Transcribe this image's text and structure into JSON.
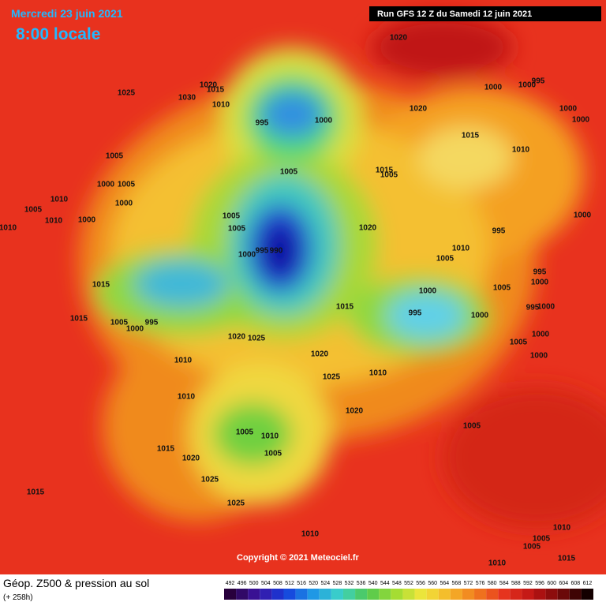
{
  "header": {
    "date": "Mercredi 23 juin 2021",
    "time": "8:00 locale",
    "run": "Run GFS 12 Z du Samedi 12 juin 2021"
  },
  "map": {
    "pressure_labels": [
      1020,
      1025,
      1030,
      1020,
      1015,
      1010,
      995,
      1000,
      1020,
      1000,
      1000,
      995,
      1000,
      1000,
      1015,
      1010,
      1005,
      1000,
      1005,
      1005,
      1005,
      1015,
      1005,
      1010,
      1010,
      1000,
      1000,
      1005,
      1005,
      1020,
      995,
      1000,
      1000,
      995,
      990,
      1005,
      1010,
      1015,
      995,
      1000,
      1005,
      1000,
      1015,
      995,
      1000,
      995,
      1000,
      1015,
      1005,
      1000,
      995,
      1020,
      1025,
      1020,
      1005,
      1000,
      1000,
      1010,
      1010,
      1025,
      1010,
      1020,
      1005,
      1005,
      1010,
      1005,
      1015,
      1020,
      1025,
      1015,
      1025,
      1010,
      1010,
      1005,
      1005,
      1015,
      1010,
      1010
    ]
  },
  "copyright": "Copyright © 2021 Meteociel.fr",
  "footer": {
    "title": "Géop. Z500 & pression au sol",
    "subtitle": "(+ 258h)",
    "scale_ticks": [
      492,
      496,
      500,
      504,
      508,
      512,
      516,
      520,
      524,
      528,
      532,
      536,
      540,
      544,
      548,
      552,
      556,
      560,
      564,
      568,
      572,
      576,
      580,
      584,
      588,
      592,
      596,
      600,
      604,
      608,
      612
    ]
  }
}
